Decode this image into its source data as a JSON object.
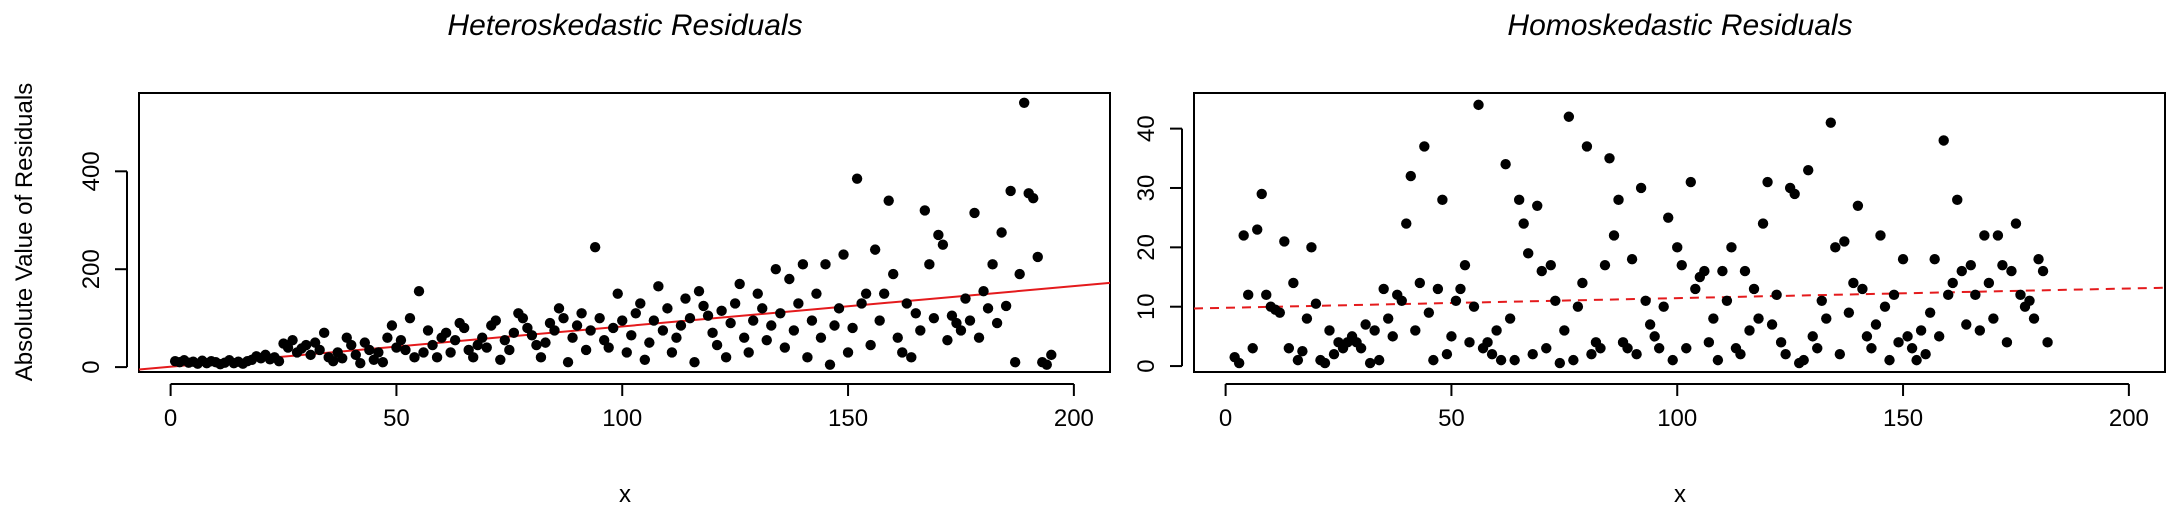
{
  "chart_data": [
    {
      "type": "scatter",
      "title": "Heteroskedastic Residuals",
      "xlabel": "x",
      "ylabel": "Absolute Value of Residuals",
      "xlim": [
        -7,
        208
      ],
      "ylim": [
        -10,
        560
      ],
      "xticks": [
        0,
        50,
        100,
        150,
        200
      ],
      "xtick_labels": [
        "0",
        "50",
        "100",
        "150",
        "200"
      ],
      "yticks": [
        0,
        200,
        400
      ],
      "ytick_labels": [
        "0",
        "200",
        "400"
      ],
      "grid": false,
      "point_color": "#000000",
      "fit_line": {
        "x": [
          -7,
          208
        ],
        "y": [
          -5,
          172
        ],
        "color": "#e41a1c",
        "style": "solid"
      },
      "points": [
        [
          1,
          12
        ],
        [
          2,
          10
        ],
        [
          3,
          14
        ],
        [
          4,
          9
        ],
        [
          5,
          11
        ],
        [
          6,
          7
        ],
        [
          7,
          13
        ],
        [
          8,
          8
        ],
        [
          9,
          12
        ],
        [
          10,
          10
        ],
        [
          11,
          6
        ],
        [
          12,
          9
        ],
        [
          13,
          14
        ],
        [
          14,
          8
        ],
        [
          15,
          11
        ],
        [
          16,
          7
        ],
        [
          17,
          12
        ],
        [
          18,
          15
        ],
        [
          19,
          22
        ],
        [
          20,
          18
        ],
        [
          21,
          25
        ],
        [
          22,
          16
        ],
        [
          23,
          20
        ],
        [
          24,
          12
        ],
        [
          25,
          48
        ],
        [
          26,
          40
        ],
        [
          27,
          55
        ],
        [
          28,
          30
        ],
        [
          29,
          38
        ],
        [
          30,
          45
        ],
        [
          31,
          25
        ],
        [
          32,
          50
        ],
        [
          33,
          35
        ],
        [
          34,
          70
        ],
        [
          35,
          20
        ],
        [
          36,
          12
        ],
        [
          37,
          30
        ],
        [
          38,
          18
        ],
        [
          39,
          60
        ],
        [
          40,
          45
        ],
        [
          41,
          25
        ],
        [
          42,
          8
        ],
        [
          43,
          50
        ],
        [
          44,
          35
        ],
        [
          45,
          15
        ],
        [
          46,
          30
        ],
        [
          47,
          10
        ],
        [
          48,
          60
        ],
        [
          49,
          85
        ],
        [
          50,
          40
        ],
        [
          51,
          55
        ],
        [
          52,
          35
        ],
        [
          53,
          100
        ],
        [
          54,
          20
        ],
        [
          55,
          155
        ],
        [
          56,
          30
        ],
        [
          57,
          75
        ],
        [
          58,
          45
        ],
        [
          59,
          20
        ],
        [
          60,
          60
        ],
        [
          61,
          70
        ],
        [
          62,
          30
        ],
        [
          63,
          55
        ],
        [
          64,
          90
        ],
        [
          65,
          80
        ],
        [
          66,
          35
        ],
        [
          67,
          20
        ],
        [
          68,
          45
        ],
        [
          69,
          60
        ],
        [
          70,
          40
        ],
        [
          71,
          85
        ],
        [
          72,
          95
        ],
        [
          73,
          15
        ],
        [
          74,
          55
        ],
        [
          75,
          35
        ],
        [
          76,
          70
        ],
        [
          77,
          110
        ],
        [
          78,
          100
        ],
        [
          79,
          80
        ],
        [
          80,
          65
        ],
        [
          81,
          45
        ],
        [
          82,
          20
        ],
        [
          83,
          50
        ],
        [
          84,
          90
        ],
        [
          85,
          75
        ],
        [
          86,
          120
        ],
        [
          87,
          100
        ],
        [
          88,
          10
        ],
        [
          89,
          60
        ],
        [
          90,
          85
        ],
        [
          91,
          110
        ],
        [
          92,
          35
        ],
        [
          93,
          75
        ],
        [
          94,
          245
        ],
        [
          95,
          100
        ],
        [
          96,
          55
        ],
        [
          97,
          40
        ],
        [
          98,
          80
        ],
        [
          99,
          150
        ],
        [
          100,
          95
        ],
        [
          101,
          30
        ],
        [
          102,
          65
        ],
        [
          103,
          110
        ],
        [
          104,
          130
        ],
        [
          105,
          15
        ],
        [
          106,
          50
        ],
        [
          107,
          95
        ],
        [
          108,
          165
        ],
        [
          109,
          75
        ],
        [
          110,
          120
        ],
        [
          111,
          30
        ],
        [
          112,
          60
        ],
        [
          113,
          85
        ],
        [
          114,
          140
        ],
        [
          115,
          100
        ],
        [
          116,
          10
        ],
        [
          117,
          155
        ],
        [
          118,
          125
        ],
        [
          119,
          105
        ],
        [
          120,
          70
        ],
        [
          121,
          45
        ],
        [
          122,
          115
        ],
        [
          123,
          20
        ],
        [
          124,
          90
        ],
        [
          125,
          130
        ],
        [
          126,
          170
        ],
        [
          127,
          60
        ],
        [
          128,
          30
        ],
        [
          129,
          95
        ],
        [
          130,
          150
        ],
        [
          131,
          120
        ],
        [
          132,
          55
        ],
        [
          133,
          85
        ],
        [
          134,
          200
        ],
        [
          135,
          110
        ],
        [
          136,
          40
        ],
        [
          137,
          180
        ],
        [
          138,
          75
        ],
        [
          139,
          130
        ],
        [
          140,
          210
        ],
        [
          141,
          20
        ],
        [
          142,
          95
        ],
        [
          143,
          150
        ],
        [
          144,
          60
        ],
        [
          145,
          210
        ],
        [
          146,
          5
        ],
        [
          147,
          85
        ],
        [
          148,
          120
        ],
        [
          149,
          230
        ],
        [
          150,
          30
        ],
        [
          151,
          80
        ],
        [
          152,
          385
        ],
        [
          153,
          130
        ],
        [
          154,
          150
        ],
        [
          155,
          45
        ],
        [
          156,
          240
        ],
        [
          157,
          95
        ],
        [
          158,
          150
        ],
        [
          159,
          340
        ],
        [
          160,
          190
        ],
        [
          161,
          60
        ],
        [
          162,
          30
        ],
        [
          163,
          130
        ],
        [
          164,
          20
        ],
        [
          165,
          110
        ],
        [
          166,
          75
        ],
        [
          167,
          320
        ],
        [
          168,
          210
        ],
        [
          169,
          100
        ],
        [
          170,
          270
        ],
        [
          171,
          250
        ],
        [
          172,
          55
        ],
        [
          173,
          105
        ],
        [
          174,
          90
        ],
        [
          175,
          75
        ],
        [
          176,
          140
        ],
        [
          177,
          95
        ],
        [
          178,
          315
        ],
        [
          179,
          60
        ],
        [
          180,
          155
        ],
        [
          181,
          120
        ],
        [
          182,
          210
        ],
        [
          183,
          90
        ],
        [
          184,
          275
        ],
        [
          185,
          125
        ],
        [
          186,
          360
        ],
        [
          187,
          10
        ],
        [
          188,
          190
        ],
        [
          189,
          540
        ],
        [
          190,
          355
        ],
        [
          191,
          345
        ],
        [
          192,
          225
        ],
        [
          193,
          10
        ],
        [
          194,
          5
        ],
        [
          195,
          25
        ]
      ]
    },
    {
      "type": "scatter",
      "title": "Homoskedastic Residuals",
      "xlabel": "x",
      "ylabel": "",
      "xlim": [
        -7,
        208
      ],
      "ylim": [
        -1,
        46
      ],
      "xticks": [
        0,
        50,
        100,
        150,
        200
      ],
      "xtick_labels": [
        "0",
        "50",
        "100",
        "150",
        "200"
      ],
      "yticks": [
        0,
        10,
        20,
        30,
        40
      ],
      "ytick_labels": [
        "0",
        "10",
        "20",
        "30",
        "40"
      ],
      "grid": false,
      "point_color": "#000000",
      "fit_line": {
        "x": [
          -7,
          208
        ],
        "y": [
          9.7,
          13.2
        ],
        "color": "#e41a1c",
        "style": "dashed"
      },
      "points": [
        [
          2,
          1.5
        ],
        [
          3,
          0.5
        ],
        [
          4,
          22
        ],
        [
          5,
          12
        ],
        [
          6,
          3
        ],
        [
          7,
          23
        ],
        [
          8,
          29
        ],
        [
          9,
          12
        ],
        [
          10,
          10
        ],
        [
          11,
          9.5
        ],
        [
          12,
          9
        ],
        [
          13,
          21
        ],
        [
          14,
          3
        ],
        [
          15,
          14
        ],
        [
          16,
          1
        ],
        [
          17,
          2.5
        ],
        [
          18,
          8
        ],
        [
          19,
          20
        ],
        [
          20,
          10.5
        ],
        [
          21,
          1
        ],
        [
          22,
          0.5
        ],
        [
          23,
          6
        ],
        [
          24,
          2
        ],
        [
          25,
          4
        ],
        [
          26,
          3
        ],
        [
          27,
          4
        ],
        [
          28,
          5
        ],
        [
          29,
          4
        ],
        [
          30,
          3
        ],
        [
          31,
          7
        ],
        [
          32,
          0.5
        ],
        [
          33,
          6
        ],
        [
          34,
          1
        ],
        [
          35,
          13
        ],
        [
          36,
          8
        ],
        [
          37,
          5
        ],
        [
          38,
          12
        ],
        [
          39,
          11
        ],
        [
          40,
          24
        ],
        [
          41,
          32
        ],
        [
          42,
          6
        ],
        [
          43,
          14
        ],
        [
          44,
          37
        ],
        [
          45,
          9
        ],
        [
          46,
          1
        ],
        [
          47,
          13
        ],
        [
          48,
          28
        ],
        [
          49,
          2
        ],
        [
          50,
          5
        ],
        [
          51,
          11
        ],
        [
          52,
          13
        ],
        [
          53,
          17
        ],
        [
          54,
          4
        ],
        [
          55,
          10
        ],
        [
          56,
          44
        ],
        [
          57,
          3
        ],
        [
          58,
          4
        ],
        [
          59,
          2
        ],
        [
          60,
          6
        ],
        [
          61,
          1
        ],
        [
          62,
          34
        ],
        [
          63,
          8
        ],
        [
          64,
          1
        ],
        [
          65,
          28
        ],
        [
          66,
          24
        ],
        [
          67,
          19
        ],
        [
          68,
          2
        ],
        [
          69,
          27
        ],
        [
          70,
          16
        ],
        [
          71,
          3
        ],
        [
          72,
          17
        ],
        [
          73,
          11
        ],
        [
          74,
          0.5
        ],
        [
          75,
          6
        ],
        [
          76,
          42
        ],
        [
          77,
          1
        ],
        [
          78,
          10
        ],
        [
          79,
          14
        ],
        [
          80,
          37
        ],
        [
          81,
          2
        ],
        [
          82,
          4
        ],
        [
          83,
          3
        ],
        [
          84,
          17
        ],
        [
          85,
          35
        ],
        [
          86,
          22
        ],
        [
          87,
          28
        ],
        [
          88,
          4
        ],
        [
          89,
          3
        ],
        [
          90,
          18
        ],
        [
          91,
          2
        ],
        [
          92,
          30
        ],
        [
          93,
          11
        ],
        [
          94,
          7
        ],
        [
          95,
          5
        ],
        [
          96,
          3
        ],
        [
          97,
          10
        ],
        [
          98,
          25
        ],
        [
          99,
          1
        ],
        [
          100,
          20
        ],
        [
          101,
          17
        ],
        [
          102,
          3
        ],
        [
          103,
          31
        ],
        [
          104,
          13
        ],
        [
          105,
          15
        ],
        [
          106,
          16
        ],
        [
          107,
          4
        ],
        [
          108,
          8
        ],
        [
          109,
          1
        ],
        [
          110,
          16
        ],
        [
          111,
          11
        ],
        [
          112,
          20
        ],
        [
          113,
          3
        ],
        [
          114,
          2
        ],
        [
          115,
          16
        ],
        [
          116,
          6
        ],
        [
          117,
          13
        ],
        [
          118,
          8
        ],
        [
          119,
          24
        ],
        [
          120,
          31
        ],
        [
          121,
          7
        ],
        [
          122,
          12
        ],
        [
          123,
          4
        ],
        [
          124,
          2
        ],
        [
          125,
          30
        ],
        [
          126,
          29
        ],
        [
          127,
          0.5
        ],
        [
          128,
          1
        ],
        [
          129,
          33
        ],
        [
          130,
          5
        ],
        [
          131,
          3
        ],
        [
          132,
          11
        ],
        [
          133,
          8
        ],
        [
          134,
          41
        ],
        [
          135,
          20
        ],
        [
          136,
          2
        ],
        [
          137,
          21
        ],
        [
          138,
          9
        ],
        [
          139,
          14
        ],
        [
          140,
          27
        ],
        [
          141,
          13
        ],
        [
          142,
          5
        ],
        [
          143,
          3
        ],
        [
          144,
          7
        ],
        [
          145,
          22
        ],
        [
          146,
          10
        ],
        [
          147,
          1
        ],
        [
          148,
          12
        ],
        [
          149,
          4
        ],
        [
          150,
          18
        ],
        [
          151,
          5
        ],
        [
          152,
          3
        ],
        [
          153,
          1
        ],
        [
          154,
          6
        ],
        [
          155,
          2
        ],
        [
          156,
          9
        ],
        [
          157,
          18
        ],
        [
          158,
          5
        ],
        [
          159,
          38
        ],
        [
          160,
          12
        ],
        [
          161,
          14
        ],
        [
          162,
          28
        ],
        [
          163,
          16
        ],
        [
          164,
          7
        ],
        [
          165,
          17
        ],
        [
          166,
          12
        ],
        [
          167,
          6
        ],
        [
          168,
          22
        ],
        [
          169,
          14
        ],
        [
          170,
          8
        ],
        [
          171,
          22
        ],
        [
          172,
          17
        ],
        [
          173,
          4
        ],
        [
          174,
          16
        ],
        [
          175,
          24
        ],
        [
          176,
          12
        ],
        [
          177,
          10
        ],
        [
          178,
          11
        ],
        [
          179,
          8
        ],
        [
          180,
          18
        ],
        [
          181,
          16
        ],
        [
          182,
          4
        ]
      ]
    }
  ]
}
